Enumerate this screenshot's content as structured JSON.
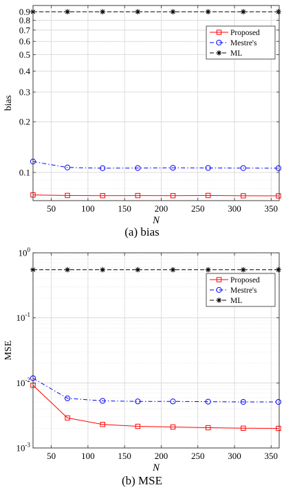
{
  "captions": {
    "a": "(a) bias",
    "b": "(b) MSE"
  },
  "chart_data": [
    {
      "type": "line",
      "scale": "log",
      "ylabel": "bias",
      "xlabel": "N",
      "xlim": [
        25,
        361
      ],
      "ylim": [
        0.068,
        0.98
      ],
      "xticks": [
        50,
        100,
        150,
        200,
        250,
        300,
        350
      ],
      "xticklabels": [
        "50",
        "100",
        "150",
        "200",
        "250",
        "300",
        "350"
      ],
      "yticks": [
        0.1,
        0.2,
        0.3,
        0.4,
        0.5,
        0.6,
        0.7,
        0.8,
        0.9
      ],
      "yticklabels": [
        "0.1",
        "0.2",
        "0.3",
        "0.4",
        "0.5",
        "0.6",
        "0.7",
        "0.8",
        "0.9"
      ],
      "grid": true,
      "legend_position": "top-right",
      "x": [
        25,
        72,
        120,
        168,
        216,
        264,
        312,
        360
      ],
      "series": [
        {
          "name": "Proposed",
          "color": "#ff0000",
          "marker": "square",
          "dash": "solid",
          "values": [
            0.0735,
            0.073,
            0.0728,
            0.0729,
            0.0728,
            0.073,
            0.0727,
            0.0726
          ]
        },
        {
          "name": "Mestre's",
          "color": "#0000ff",
          "marker": "circle",
          "dash": "dashdot",
          "values": [
            0.116,
            0.107,
            0.106,
            0.1062,
            0.1065,
            0.1063,
            0.1061,
            0.106
          ]
        },
        {
          "name": "ML",
          "color": "#000000",
          "marker": "asterisk",
          "dash": "dashed",
          "values": [
            0.9,
            0.9,
            0.9,
            0.9,
            0.9,
            0.9,
            0.9,
            0.9
          ]
        }
      ]
    },
    {
      "type": "line",
      "scale": "log",
      "ylabel": "MSE",
      "xlabel": "N",
      "xlim": [
        25,
        361
      ],
      "ylim": [
        0.001,
        1
      ],
      "xticks": [
        50,
        100,
        150,
        200,
        250,
        300,
        350
      ],
      "xticklabels": [
        "50",
        "100",
        "150",
        "200",
        "250",
        "300",
        "350"
      ],
      "yticks": [
        0.001,
        0.01,
        0.1,
        1
      ],
      "yticklabels": [
        {
          "base": "10",
          "exp": "-3"
        },
        {
          "base": "10",
          "exp": "-2"
        },
        {
          "base": "10",
          "exp": "-1"
        },
        {
          "base": "10",
          "exp": "0"
        }
      ],
      "grid": true,
      "legend_position": "top-right",
      "x": [
        25,
        72,
        120,
        168,
        216,
        264,
        312,
        360
      ],
      "series": [
        {
          "name": "Proposed",
          "color": "#ff0000",
          "marker": "square",
          "dash": "solid",
          "values": [
            0.0092,
            0.0029,
            0.0023,
            0.00215,
            0.0021,
            0.00205,
            0.00201,
            0.002
          ]
        },
        {
          "name": "Mestre's",
          "color": "#0000ff",
          "marker": "circle",
          "dash": "dashdot",
          "values": [
            0.0118,
            0.0058,
            0.0053,
            0.0052,
            0.0052,
            0.00515,
            0.0051,
            0.0051
          ]
        },
        {
          "name": "ML",
          "color": "#000000",
          "marker": "asterisk",
          "dash": "dashed",
          "values": [
            0.55,
            0.55,
            0.55,
            0.55,
            0.55,
            0.55,
            0.55,
            0.55
          ]
        }
      ]
    }
  ]
}
